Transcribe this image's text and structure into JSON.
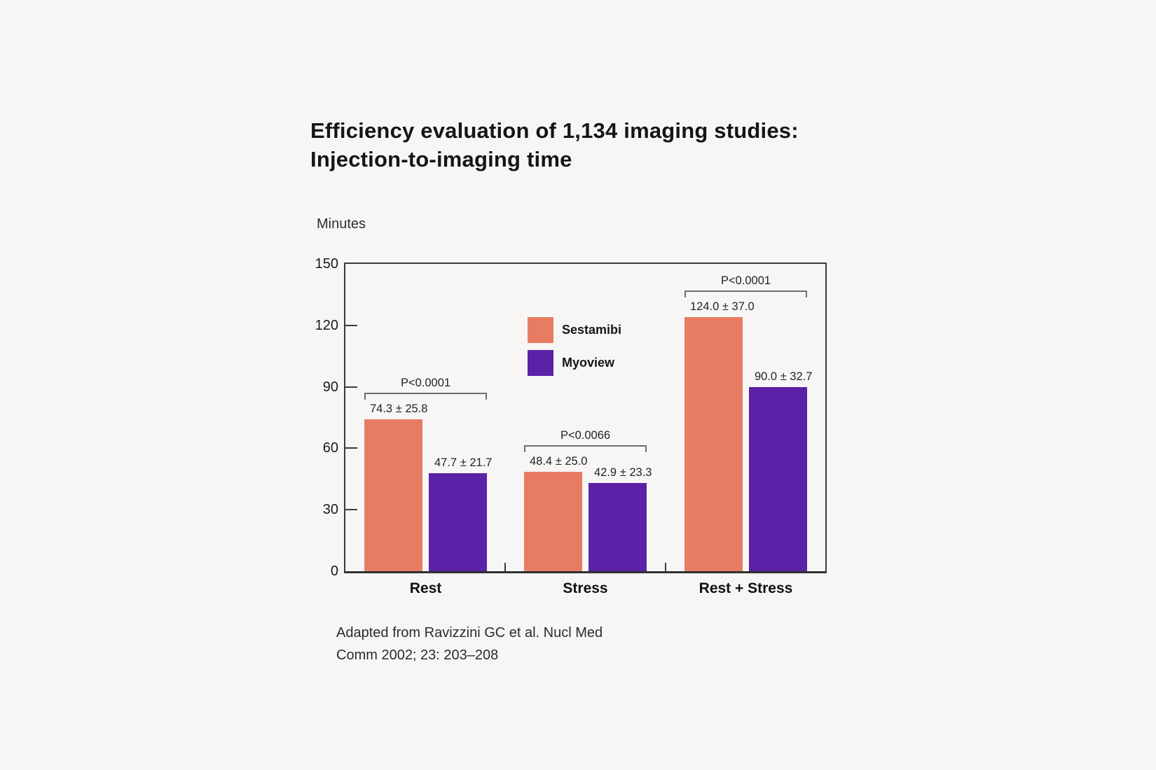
{
  "header": {
    "line1": "Efficiency evaluation of 1,134 imaging studies:",
    "line2": "Injection-to-imaging time"
  },
  "y_axis_title": "Minutes",
  "legend": {
    "items": [
      {
        "name": "Sestamibi",
        "color": "#E87C63"
      },
      {
        "name": "Myoview",
        "color": "#5B21A6"
      }
    ]
  },
  "citation": {
    "line1": "Adapted from Ravizzini GC et al. Nucl Med",
    "line2": "Comm 2002; 23: 203–208"
  },
  "chart_data": {
    "type": "bar",
    "title": "Efficiency evaluation of 1,134 imaging studies: Injection-to-imaging time",
    "xlabel": "",
    "ylabel": "Minutes",
    "ylim": [
      0,
      150
    ],
    "yticks": [
      0,
      30,
      60,
      90,
      120,
      150
    ],
    "grid": false,
    "legend_position": "inside-top-center",
    "categories": [
      "Rest",
      "Stress",
      "Rest + Stress"
    ],
    "series": [
      {
        "name": "Sestamibi",
        "color": "#E87C63",
        "values": [
          74.3,
          48.4,
          124.0
        ],
        "sd": [
          25.8,
          25.0,
          37.0
        ],
        "labels": [
          "74.3 ± 25.8",
          "48.4 ± 25.0",
          "124.0 ± 37.0"
        ]
      },
      {
        "name": "Myoview",
        "color": "#5B21A6",
        "values": [
          47.7,
          42.9,
          90.0
        ],
        "sd": [
          21.7,
          23.3,
          32.7
        ],
        "labels": [
          "47.7 ± 21.7",
          "42.9 ± 23.3",
          "90.0 ± 32.7"
        ]
      }
    ],
    "significance": [
      {
        "category": "Rest",
        "label": "P<0.0001"
      },
      {
        "category": "Stress",
        "label": "P<0.0066"
      },
      {
        "category": "Rest + Stress",
        "label": "P<0.0001"
      }
    ]
  }
}
